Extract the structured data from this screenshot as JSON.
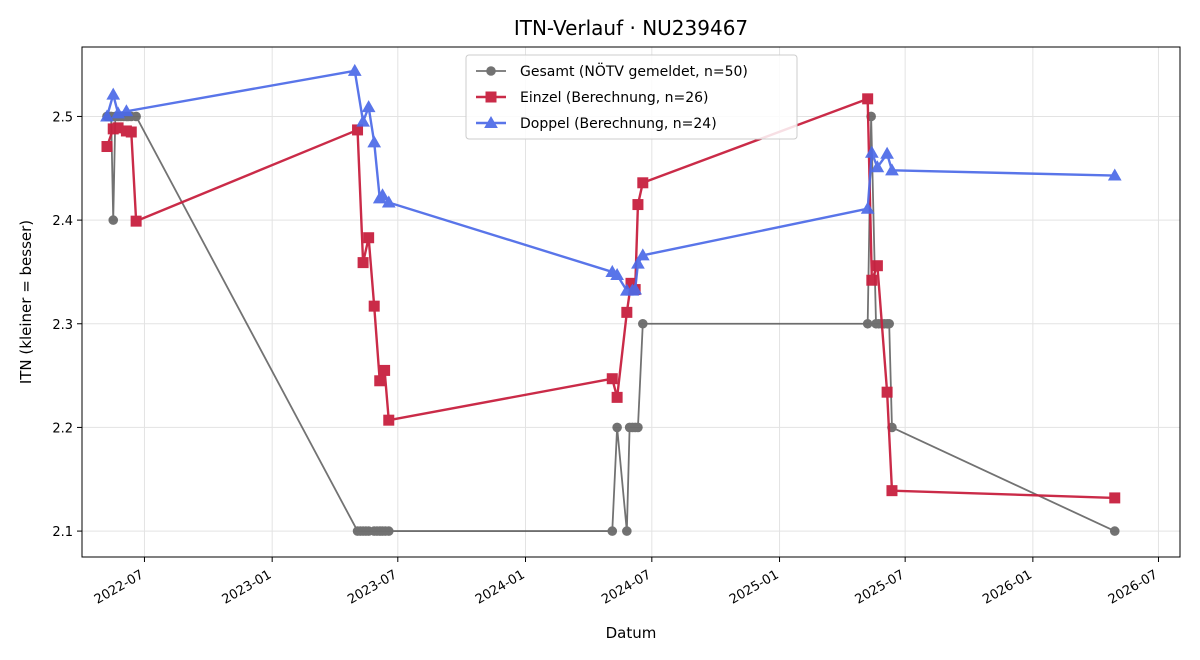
{
  "chart_data": {
    "type": "line",
    "title": "ITN-Verlauf · NU239467",
    "xlabel": "Datum",
    "ylabel": "ITN  (kleiner = besser)",
    "x_axis_type": "date",
    "xlim": [
      "2022-04-02",
      "2026-08-01"
    ],
    "ylim": [
      2.075,
      2.567
    ],
    "xticks": [
      "2022-07-01",
      "2023-01-01",
      "2023-07-01",
      "2024-01-01",
      "2024-07-01",
      "2025-01-01",
      "2025-07-01",
      "2026-01-01",
      "2026-07-01"
    ],
    "xtick_labels": [
      "2022-07",
      "2023-01",
      "2023-07",
      "2024-01",
      "2024-07",
      "2025-01",
      "2025-07",
      "2026-01",
      "2026-07"
    ],
    "yticks": [
      2.1,
      2.2,
      2.3,
      2.4,
      2.5
    ],
    "ytick_labels": [
      "2.1",
      "2.2",
      "2.3",
      "2.4",
      "2.5"
    ],
    "grid": true,
    "legend_position": "top-center",
    "series": [
      {
        "name": "Gesamt (NÖTV gemeldet, n=50)",
        "color": "#444444",
        "marker": "circle",
        "points": [
          [
            "2022-05-08",
            2.5
          ],
          [
            "2022-05-11",
            2.5
          ],
          [
            "2022-05-14",
            2.5
          ],
          [
            "2022-05-17",
            2.4
          ],
          [
            "2022-05-20",
            2.5
          ],
          [
            "2022-05-24",
            2.5
          ],
          [
            "2022-05-28",
            2.5
          ],
          [
            "2022-06-01",
            2.5
          ],
          [
            "2022-06-05",
            2.5
          ],
          [
            "2022-06-08",
            2.5
          ],
          [
            "2022-06-12",
            2.5
          ],
          [
            "2022-06-19",
            2.5
          ],
          [
            "2023-05-04",
            2.1
          ],
          [
            "2023-05-08",
            2.1
          ],
          [
            "2023-05-12",
            2.1
          ],
          [
            "2023-05-16",
            2.1
          ],
          [
            "2023-05-20",
            2.1
          ],
          [
            "2023-05-28",
            2.1
          ],
          [
            "2023-06-01",
            2.1
          ],
          [
            "2023-06-05",
            2.1
          ],
          [
            "2023-06-09",
            2.1
          ],
          [
            "2023-06-13",
            2.1
          ],
          [
            "2023-06-18",
            2.1
          ],
          [
            "2024-05-05",
            2.1
          ],
          [
            "2024-05-12",
            2.2
          ],
          [
            "2024-05-26",
            2.1
          ],
          [
            "2024-05-30",
            2.2
          ],
          [
            "2024-06-03",
            2.2
          ],
          [
            "2024-06-07",
            2.2
          ],
          [
            "2024-06-11",
            2.2
          ],
          [
            "2024-06-18",
            2.3
          ],
          [
            "2025-05-08",
            2.3
          ],
          [
            "2025-05-13",
            2.5
          ],
          [
            "2025-05-20",
            2.3
          ],
          [
            "2025-05-24",
            2.3
          ],
          [
            "2025-05-28",
            2.3
          ],
          [
            "2025-06-01",
            2.3
          ],
          [
            "2025-06-05",
            2.3
          ],
          [
            "2025-06-08",
            2.3
          ],
          [
            "2025-06-12",
            2.2
          ],
          [
            "2026-04-29",
            2.1
          ]
        ]
      },
      {
        "name": "Einzel (Berechnung, n=26)",
        "color": "#c8203f",
        "marker": "square",
        "points": [
          [
            "2022-05-08",
            2.471
          ],
          [
            "2022-05-17",
            2.488
          ],
          [
            "2022-05-24",
            2.489
          ],
          [
            "2022-06-05",
            2.486
          ],
          [
            "2022-06-12",
            2.485
          ],
          [
            "2022-06-19",
            2.399
          ],
          [
            "2023-05-04",
            2.487
          ],
          [
            "2023-05-12",
            2.359
          ],
          [
            "2023-05-20",
            2.383
          ],
          [
            "2023-05-28",
            2.317
          ],
          [
            "2023-06-05",
            2.245
          ],
          [
            "2023-06-12",
            2.255
          ],
          [
            "2023-06-18",
            2.207
          ],
          [
            "2024-05-05",
            2.247
          ],
          [
            "2024-05-12",
            2.229
          ],
          [
            "2024-05-26",
            2.311
          ],
          [
            "2024-06-01",
            2.339
          ],
          [
            "2024-06-07",
            2.333
          ],
          [
            "2024-06-11",
            2.415
          ],
          [
            "2024-06-18",
            2.436
          ],
          [
            "2025-05-08",
            2.517
          ],
          [
            "2025-05-14",
            2.342
          ],
          [
            "2025-05-22",
            2.356
          ],
          [
            "2025-06-05",
            2.234
          ],
          [
            "2025-06-12",
            2.139
          ],
          [
            "2026-04-29",
            2.132
          ]
        ]
      },
      {
        "name": "Doppel (Berechnung, n=24)",
        "color": "#4c6ae8",
        "marker": "triangle",
        "points": [
          [
            "2022-05-08",
            2.5
          ],
          [
            "2022-05-17",
            2.521
          ],
          [
            "2022-05-24",
            2.503
          ],
          [
            "2022-06-05",
            2.505
          ],
          [
            "2023-04-30",
            2.544
          ],
          [
            "2023-05-12",
            2.495
          ],
          [
            "2023-05-20",
            2.509
          ],
          [
            "2023-05-28",
            2.475
          ],
          [
            "2023-06-05",
            2.421
          ],
          [
            "2023-06-09",
            2.424
          ],
          [
            "2023-06-18",
            2.417
          ],
          [
            "2024-05-05",
            2.35
          ],
          [
            "2024-05-12",
            2.347
          ],
          [
            "2024-05-26",
            2.332
          ],
          [
            "2024-06-03",
            2.332
          ],
          [
            "2024-06-07",
            2.333
          ],
          [
            "2024-06-11",
            2.358
          ],
          [
            "2024-06-18",
            2.366
          ],
          [
            "2025-05-08",
            2.411
          ],
          [
            "2025-05-14",
            2.465
          ],
          [
            "2025-05-22",
            2.451
          ],
          [
            "2025-06-05",
            2.464
          ],
          [
            "2025-06-12",
            2.448
          ],
          [
            "2026-04-29",
            2.443
          ]
        ]
      }
    ]
  }
}
